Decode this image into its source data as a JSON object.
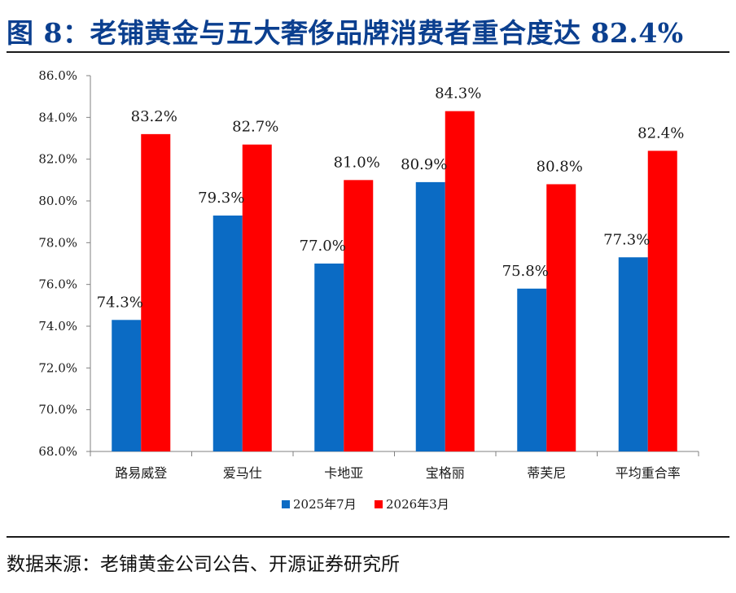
{
  "title": "图 8：老铺黄金与五大奢侈品牌消费者重合度达 82.4%",
  "source": "数据来源：老铺黄金公司公告、开源证券研究所",
  "colors": {
    "title": "#0b3f8f",
    "series_a": "#0b6bc4",
    "series_b": "#ff0000",
    "axis": "#808080"
  },
  "chart_data": {
    "type": "bar",
    "categories": [
      "路易威登",
      "爱马仕",
      "卡地亚",
      "宝格丽",
      "蒂芙尼",
      "平均重合率"
    ],
    "series": [
      {
        "name": "2025年7月",
        "values": [
          74.3,
          79.3,
          77.0,
          80.9,
          75.8,
          77.3
        ]
      },
      {
        "name": "2026年3月",
        "values": [
          83.2,
          82.7,
          81.0,
          84.3,
          80.8,
          82.4
        ]
      }
    ],
    "ylim": [
      68,
      86
    ],
    "yticks": [
      68,
      70,
      72,
      74,
      76,
      78,
      80,
      82,
      84,
      86
    ],
    "ytick_labels": [
      "68.0%",
      "70.0%",
      "72.0%",
      "74.0%",
      "76.0%",
      "78.0%",
      "80.0%",
      "82.0%",
      "84.0%",
      "86.0%"
    ],
    "data_labels": [
      [
        "74.3%",
        "79.3%",
        "77.0%",
        "80.9%",
        "75.8%",
        "77.3%"
      ],
      [
        "83.2%",
        "82.7%",
        "81.0%",
        "84.3%",
        "80.8%",
        "82.4%"
      ]
    ],
    "legend_position": "bottom-center",
    "xlabel": "",
    "ylabel": ""
  }
}
